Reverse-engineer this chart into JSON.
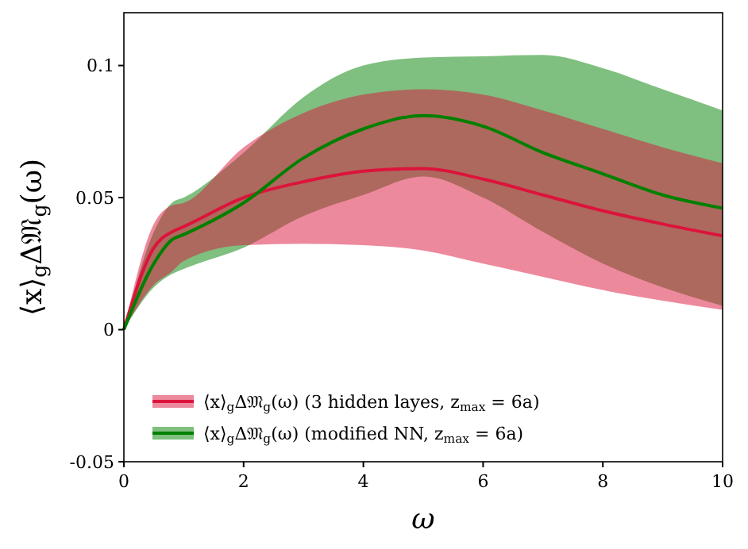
{
  "chart_data": {
    "type": "line",
    "xlabel": "ω",
    "ylabel": "⟨x⟩$_{g}$Δ𝔐$_{g}$(ω)",
    "x": [
      0,
      0.5,
      0.8,
      1,
      2,
      3,
      4,
      5,
      6,
      7,
      8,
      9,
      10
    ],
    "xlim": [
      0,
      10
    ],
    "xticks": [
      0,
      2,
      4,
      6,
      8,
      10
    ],
    "ylim": [
      -0.05,
      0.12
    ],
    "yticks": [
      -0.05,
      0,
      0.05,
      0.1
    ],
    "grid": false,
    "legend": "bottom left",
    "marker": "none",
    "line_style": "solid",
    "series": [
      {
        "name": "⟨x⟩$_{g}$Δ𝔐$_{g}$(ω) (3 hidden layes, z$_{max}$ = 6a)",
        "color": "#dc143c",
        "values": [
          0,
          0.031,
          0.037,
          0.039,
          0.05,
          0.056,
          0.06,
          0.061,
          0.057,
          0.051,
          0.045,
          0.04,
          0.0355
        ],
        "lower": [
          0,
          0.017,
          0.022,
          0.026,
          0.032,
          0.0325,
          0.032,
          0.03,
          0.025,
          0.02,
          0.015,
          0.011,
          0.0075
        ],
        "upper": [
          0,
          0.04,
          0.047,
          0.048,
          0.069,
          0.082,
          0.089,
          0.091,
          0.089,
          0.083,
          0.076,
          0.069,
          0.063
        ]
      },
      {
        "name": "⟨x⟩$_{g}$Δ𝔐$_{g}$(ω) (modified NN, z$_{max}$ = 6a)",
        "color": "#008000",
        "values": [
          0,
          0.025,
          0.034,
          0.036,
          0.048,
          0.065,
          0.076,
          0.081,
          0.077,
          0.067,
          0.059,
          0.051,
          0.046
        ],
        "lower": [
          0,
          0.016,
          0.021,
          0.023,
          0.031,
          0.043,
          0.051,
          0.058,
          0.05,
          0.037,
          0.025,
          0.016,
          0.009
        ],
        "upper": [
          0,
          0.037,
          0.048,
          0.05,
          0.067,
          0.088,
          0.1,
          0.103,
          0.1035,
          0.104,
          0.099,
          0.091,
          0.083
        ]
      }
    ]
  }
}
